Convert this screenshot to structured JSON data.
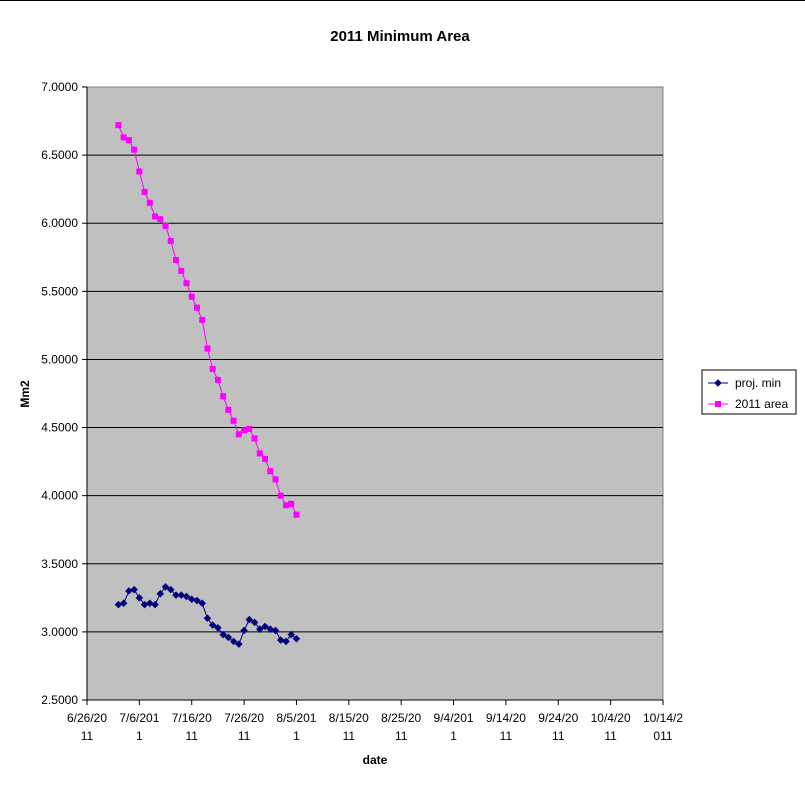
{
  "chart_data": {
    "type": "line",
    "title": "2011 Minimum Area",
    "xlabel": "date",
    "ylabel": "Mm2",
    "ylim": [
      2.5,
      7.0
    ],
    "xlim": [
      "2011-06-26",
      "2011-10-14"
    ],
    "grid": true,
    "plot_background": "#C0C0C0",
    "legend_position": "right",
    "y_ticks": [
      "2.5000",
      "3.0000",
      "3.5000",
      "4.0000",
      "4.5000",
      "5.0000",
      "5.5000",
      "6.0000",
      "6.5000",
      "7.0000"
    ],
    "x_ticks": [
      {
        "date": "2011-06-26",
        "line1": "6/26/20",
        "line2": "11"
      },
      {
        "date": "2011-07-06",
        "line1": "7/6/201",
        "line2": "1"
      },
      {
        "date": "2011-07-16",
        "line1": "7/16/20",
        "line2": "11"
      },
      {
        "date": "2011-07-26",
        "line1": "7/26/20",
        "line2": "11"
      },
      {
        "date": "2011-08-05",
        "line1": "8/5/201",
        "line2": "1"
      },
      {
        "date": "2011-08-15",
        "line1": "8/15/20",
        "line2": "11"
      },
      {
        "date": "2011-08-25",
        "line1": "8/25/20",
        "line2": "11"
      },
      {
        "date": "2011-09-04",
        "line1": "9/4/201",
        "line2": "1"
      },
      {
        "date": "2011-09-14",
        "line1": "9/14/20",
        "line2": "11"
      },
      {
        "date": "2011-09-24",
        "line1": "9/24/20",
        "line2": "11"
      },
      {
        "date": "2011-10-04",
        "line1": "10/4/20",
        "line2": "11"
      },
      {
        "date": "2011-10-14",
        "line1": "10/14/2",
        "line2": "011"
      }
    ],
    "series": [
      {
        "name": "proj. min",
        "color": "#000080",
        "marker": "diamond",
        "x": [
          "2011-07-02",
          "2011-07-03",
          "2011-07-04",
          "2011-07-05",
          "2011-07-06",
          "2011-07-07",
          "2011-07-08",
          "2011-07-09",
          "2011-07-10",
          "2011-07-11",
          "2011-07-12",
          "2011-07-13",
          "2011-07-14",
          "2011-07-15",
          "2011-07-16",
          "2011-07-17",
          "2011-07-18",
          "2011-07-19",
          "2011-07-20",
          "2011-07-21",
          "2011-07-22",
          "2011-07-23",
          "2011-07-24",
          "2011-07-25",
          "2011-07-26",
          "2011-07-27",
          "2011-07-28",
          "2011-07-29",
          "2011-07-30",
          "2011-07-31",
          "2011-08-01",
          "2011-08-02",
          "2011-08-03",
          "2011-08-04",
          "2011-08-05"
        ],
        "y": [
          3.2,
          3.21,
          3.3,
          3.31,
          3.25,
          3.2,
          3.21,
          3.2,
          3.28,
          3.33,
          3.31,
          3.27,
          3.27,
          3.26,
          3.24,
          3.23,
          3.21,
          3.1,
          3.05,
          3.03,
          2.98,
          2.96,
          2.93,
          2.91,
          3.01,
          3.09,
          3.07,
          3.02,
          3.04,
          3.02,
          3.01,
          2.94,
          2.93,
          2.98,
          2.95
        ]
      },
      {
        "name": "2011 area",
        "color": "#FF00FF",
        "marker": "square",
        "x": [
          "2011-07-02",
          "2011-07-03",
          "2011-07-04",
          "2011-07-05",
          "2011-07-06",
          "2011-07-07",
          "2011-07-08",
          "2011-07-09",
          "2011-07-10",
          "2011-07-11",
          "2011-07-12",
          "2011-07-13",
          "2011-07-14",
          "2011-07-15",
          "2011-07-16",
          "2011-07-17",
          "2011-07-18",
          "2011-07-19",
          "2011-07-20",
          "2011-07-21",
          "2011-07-22",
          "2011-07-23",
          "2011-07-24",
          "2011-07-25",
          "2011-07-26",
          "2011-07-27",
          "2011-07-28",
          "2011-07-29",
          "2011-07-30",
          "2011-07-31",
          "2011-08-01",
          "2011-08-02",
          "2011-08-03",
          "2011-08-04",
          "2011-08-05"
        ],
        "y": [
          6.72,
          6.63,
          6.61,
          6.54,
          6.38,
          6.23,
          6.15,
          6.05,
          6.03,
          5.98,
          5.87,
          5.73,
          5.65,
          5.56,
          5.46,
          5.38,
          5.29,
          5.08,
          4.93,
          4.85,
          4.73,
          4.63,
          4.55,
          4.45,
          4.48,
          4.49,
          4.42,
          4.31,
          4.27,
          4.18,
          4.12,
          4.0,
          3.93,
          3.94,
          3.86
        ]
      }
    ]
  }
}
